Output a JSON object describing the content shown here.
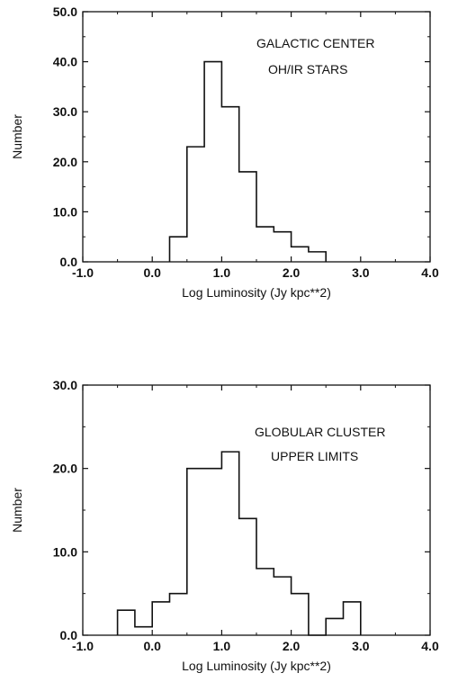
{
  "chart_data": [
    {
      "type": "histogram",
      "annotation": [
        "GALACTIC CENTER",
        "OH/IR STARS"
      ],
      "xlabel": "Log Luminosity (Jy kpc**2)",
      "ylabel": "Number",
      "xlim": [
        -1.0,
        4.0
      ],
      "ylim": [
        0,
        50
      ],
      "xticks": [
        "-1.0",
        "0.0",
        "1.0",
        "2.0",
        "3.0",
        "4.0"
      ],
      "yticks": [
        "0.0",
        "10.0",
        "20.0",
        "30.0",
        "40.0",
        "50.0"
      ],
      "bin_edges": [
        0.25,
        0.5,
        0.75,
        1.0,
        1.25,
        1.5,
        1.75,
        2.0,
        2.25,
        2.5
      ],
      "counts": [
        5,
        23,
        40,
        31,
        18,
        7,
        6,
        3,
        2
      ],
      "grid": false
    },
    {
      "type": "histogram",
      "annotation": [
        "GLOBULAR CLUSTER",
        "UPPER LIMITS"
      ],
      "xlabel": "Log Luminosity (Jy kpc**2)",
      "ylabel": "Number",
      "xlim": [
        -1.0,
        4.0
      ],
      "ylim": [
        0,
        30
      ],
      "xticks": [
        "-1.0",
        "0.0",
        "1.0",
        "2.0",
        "3.0",
        "4.0"
      ],
      "yticks": [
        "0.0",
        "10.0",
        "20.0",
        "30.0"
      ],
      "bin_edges": [
        -0.5,
        -0.25,
        0.0,
        0.25,
        0.5,
        0.75,
        1.0,
        1.25,
        1.5,
        1.75,
        2.0,
        2.25,
        2.5,
        2.75,
        3.0
      ],
      "counts": [
        3,
        1,
        4,
        5,
        20,
        20,
        22,
        14,
        8,
        7,
        5,
        0,
        2,
        4
      ],
      "grid": false
    }
  ]
}
